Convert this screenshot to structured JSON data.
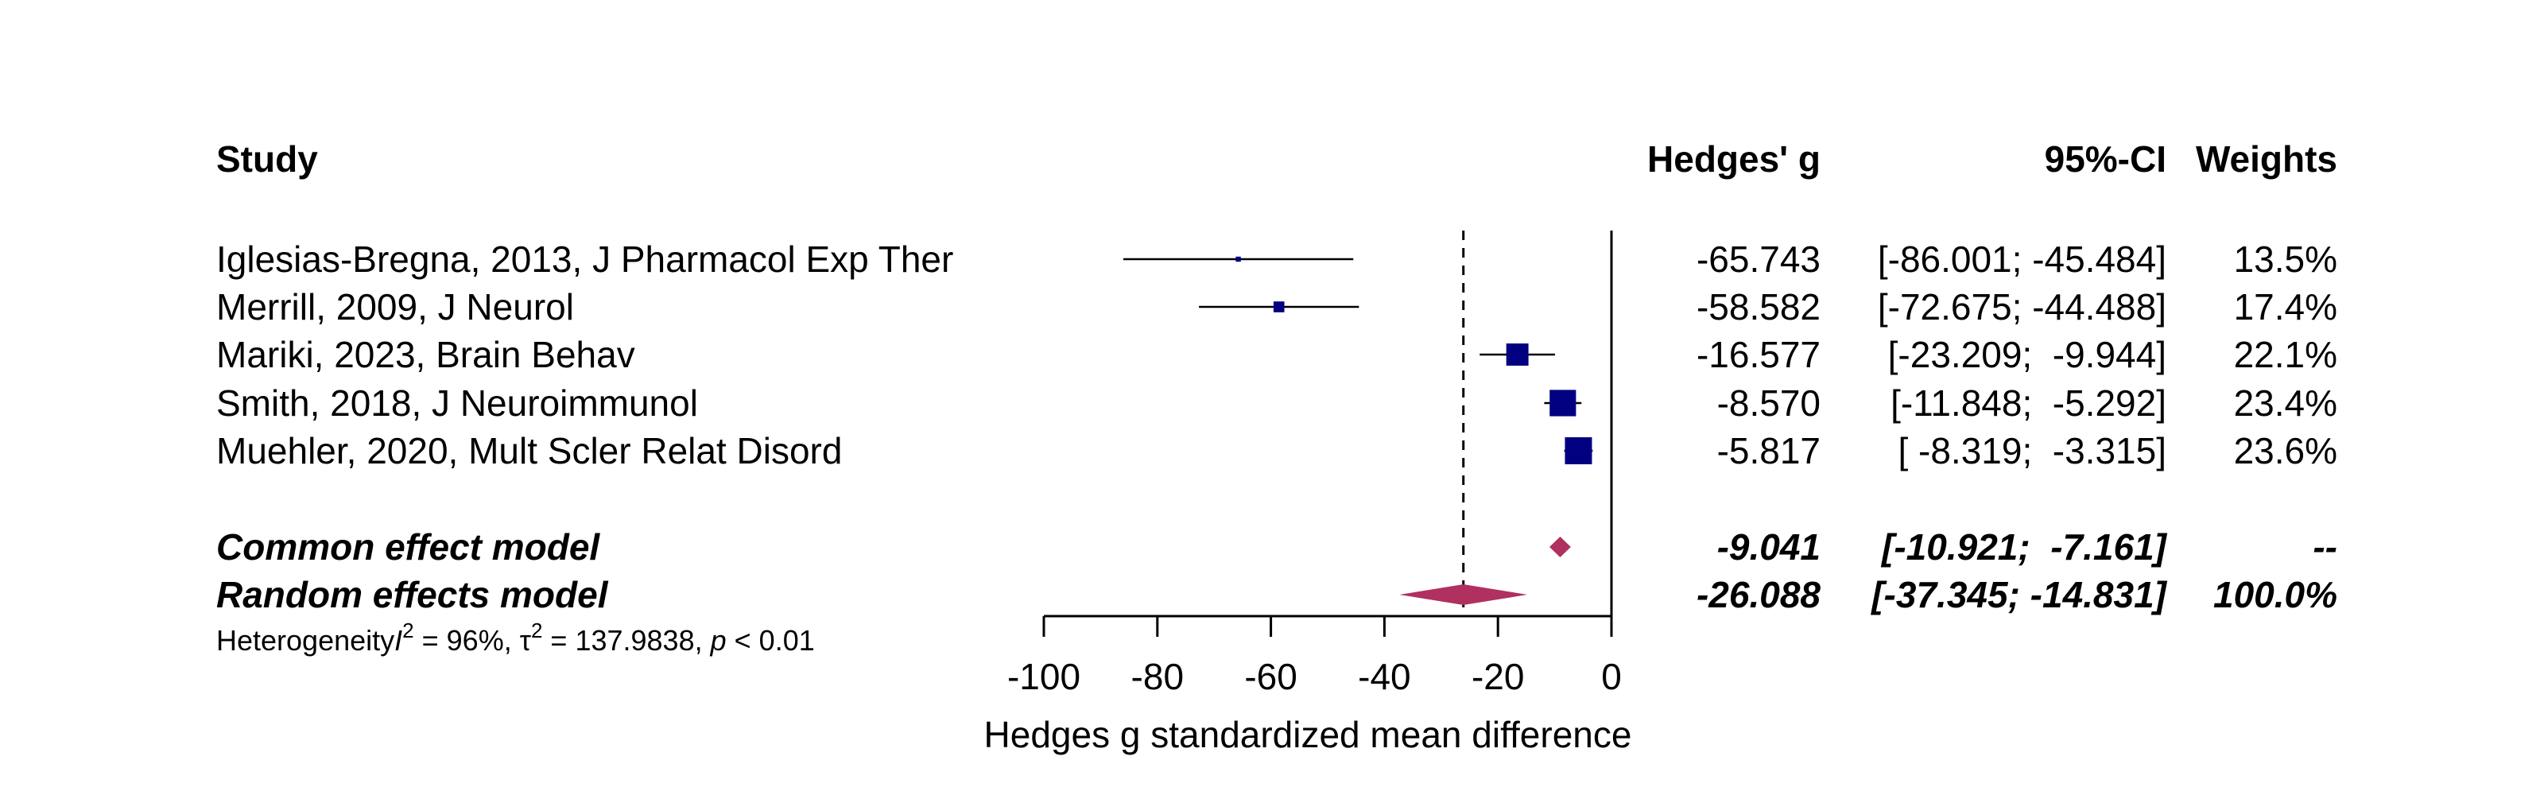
{
  "chart_data": {
    "type": "forest",
    "headers": {
      "study": "Study",
      "effect": "Hedges' g",
      "ci": "95%-CI",
      "weight": "Weights"
    },
    "studies": [
      {
        "label": "Iglesias-Bregna, 2013, J Pharmacol Exp Ther",
        "g": -65.743,
        "lo": -86.001,
        "hi": -45.484,
        "effect": "-65.743",
        "ci": "[-86.001; -45.484]",
        "weight": "13.5%",
        "w": 13.5
      },
      {
        "label": "Merrill, 2009, J Neurol",
        "g": -58.582,
        "lo": -72.675,
        "hi": -44.488,
        "effect": "-58.582",
        "ci": "[-72.675; -44.488]",
        "weight": "17.4%",
        "w": 17.4
      },
      {
        "label": "Mariki, 2023, Brain Behav",
        "g": -16.577,
        "lo": -23.209,
        "hi": -9.944,
        "effect": "-16.577",
        "ci": "[-23.209;  -9.944]",
        "weight": "22.1%",
        "w": 22.1
      },
      {
        "label": "Smith, 2018, J Neuroimmunol",
        "g": -8.57,
        "lo": -11.848,
        "hi": -5.292,
        "effect": "-8.570",
        "ci": "[-11.848;  -5.292]",
        "weight": "23.4%",
        "w": 23.4
      },
      {
        "label": "Muehler, 2020, Mult Scler Relat Disord",
        "g": -5.817,
        "lo": -8.319,
        "hi": -3.315,
        "effect": "-5.817",
        "ci": "[ -8.319;  -3.315]",
        "weight": "23.6%",
        "w": 23.6
      }
    ],
    "pooled": [
      {
        "label": "Common effect model",
        "g": -9.041,
        "lo": -10.921,
        "hi": -7.161,
        "effect": "-9.041",
        "ci": "[-10.921;  -7.161]",
        "weight": "--"
      },
      {
        "label": "Random effects model",
        "g": -26.088,
        "lo": -37.345,
        "hi": -14.831,
        "effect": "-26.088",
        "ci": "[-37.345; -14.831]",
        "weight": "100.0%"
      }
    ],
    "heterogeneity": {
      "prefix": "Heterogeneity",
      "i2_symbol": "I",
      "i2_value": " = 96%, ",
      "tau2_symbol": "τ",
      "tau2_value": " = 137.9838, ",
      "p_symbol": "p",
      "p_value": " < 0.01"
    },
    "xaxis": {
      "label": "Hedges g standardized mean difference",
      "ticks": [
        -100,
        -80,
        -60,
        -40,
        -20,
        0
      ],
      "range": [
        -100,
        0
      ]
    },
    "reference_line": 0,
    "random_effect_dashed_line": -26.088,
    "colors": {
      "study_square": "#000080",
      "pooled_diamond": "#b03060",
      "lines": "#000000"
    }
  }
}
